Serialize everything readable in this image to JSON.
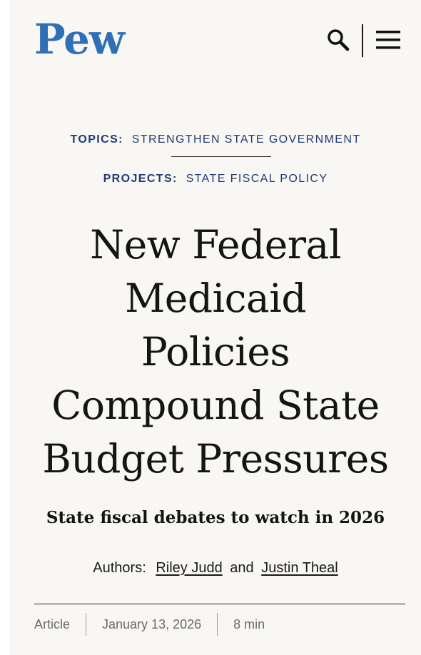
{
  "header": {
    "logo_text": "Pew",
    "search_icon": "search-icon",
    "menu_icon": "hamburger-menu-icon"
  },
  "topics": {
    "label": "TOPICS:",
    "value": "STRENGTHEN STATE GOVERNMENT"
  },
  "projects": {
    "label": "PROJECTS:",
    "value": "STATE FISCAL POLICY"
  },
  "article": {
    "title_lines": [
      "New Federal",
      "Medicaid",
      "Policies",
      "Compound State",
      "Budget Pressures"
    ],
    "subtitle": "State fiscal debates to watch in 2026",
    "authors_label": "Authors:",
    "authors": [
      "Riley Judd",
      "Justin Theal"
    ],
    "authors_joiner": "and",
    "type": "Article",
    "date": "January 13, 2026",
    "read_time": "8 min"
  },
  "colors": {
    "brand_blue": "#2f6fb6",
    "meta_navy": "#1f3a75",
    "background": "#f8f7f3"
  }
}
